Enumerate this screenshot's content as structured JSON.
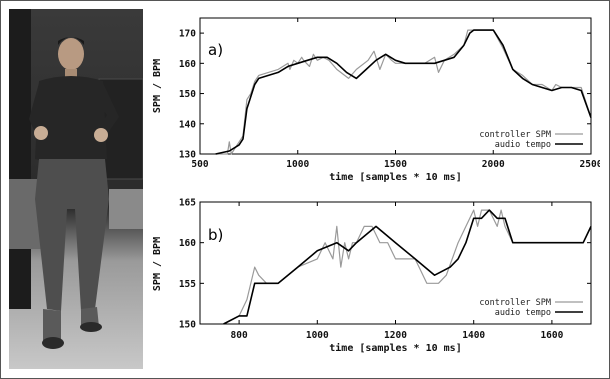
{
  "colors": {
    "controller": "#9a9a9a",
    "audio": "#000000"
  },
  "photo": {
    "description_icon": "person-jogging-photo"
  },
  "chart_data": [
    {
      "type": "line",
      "panel_label": "a)",
      "xlabel": "time [samples * 10 ms]",
      "ylabel": "SPM / BPM",
      "xlim": [
        500,
        2500
      ],
      "ylim": [
        130,
        175
      ],
      "xticks": [
        500,
        1000,
        1500,
        2000,
        2500
      ],
      "yticks": [
        130,
        140,
        150,
        160,
        170
      ],
      "legend_position": "bottom-right",
      "series": [
        {
          "name": "controller SPM",
          "color_key": "controller",
          "x": [
            580,
            620,
            640,
            650,
            660,
            670,
            700,
            720,
            740,
            760,
            780,
            800,
            850,
            900,
            950,
            960,
            980,
            1000,
            1020,
            1030,
            1060,
            1080,
            1100,
            1130,
            1160,
            1200,
            1260,
            1300,
            1360,
            1390,
            1420,
            1450,
            1480,
            1500,
            1550,
            1600,
            1650,
            1700,
            1720,
            1750,
            1800,
            1850,
            1870,
            1900,
            2000,
            2050,
            2100,
            2150,
            2200,
            2250,
            2300,
            2320,
            2350,
            2400,
            2450,
            2500
          ],
          "y": [
            130,
            130,
            130,
            134,
            130,
            131,
            134,
            136,
            148,
            150,
            154,
            156,
            157,
            158,
            160,
            158,
            161,
            160,
            162,
            161,
            159,
            163,
            161,
            162,
            161,
            158,
            155,
            158,
            161,
            164,
            158,
            163,
            161,
            160,
            160,
            160,
            160,
            162,
            157,
            161,
            163,
            166,
            171,
            171,
            171,
            165,
            158,
            156,
            153,
            153,
            151,
            153,
            152,
            152,
            152,
            142
          ]
        },
        {
          "name": "audio tempo",
          "color_key": "audio",
          "x": [
            580,
            650,
            700,
            720,
            740,
            760,
            780,
            800,
            850,
            900,
            950,
            1000,
            1050,
            1100,
            1150,
            1200,
            1250,
            1300,
            1350,
            1400,
            1450,
            1500,
            1550,
            1600,
            1650,
            1700,
            1750,
            1800,
            1850,
            1880,
            1900,
            1950,
            2000,
            2050,
            2100,
            2150,
            2200,
            2250,
            2300,
            2350,
            2400,
            2450,
            2500
          ],
          "y": [
            130,
            131,
            133,
            135,
            145,
            149,
            153,
            155,
            156,
            157,
            159,
            160,
            161,
            162,
            162,
            160,
            157,
            155,
            158,
            161,
            163,
            161,
            160,
            160,
            160,
            160,
            161,
            162,
            166,
            170,
            171,
            171,
            171,
            166,
            158,
            155,
            153,
            152,
            151,
            152,
            152,
            151,
            142
          ]
        }
      ]
    },
    {
      "type": "line",
      "panel_label": "b)",
      "xlabel": "time [samples * 10 ms]",
      "ylabel": "SPM / BPM",
      "xlim": [
        700,
        1700
      ],
      "ylim": [
        150,
        165
      ],
      "xticks": [
        800,
        1000,
        1200,
        1400,
        1600
      ],
      "yticks": [
        150,
        155,
        160,
        165
      ],
      "legend_position": "bottom-right",
      "series": [
        {
          "name": "controller SPM",
          "color_key": "controller",
          "x": [
            760,
            800,
            820,
            840,
            850,
            870,
            900,
            950,
            1000,
            1020,
            1040,
            1050,
            1060,
            1070,
            1080,
            1090,
            1100,
            1120,
            1140,
            1160,
            1180,
            1200,
            1220,
            1250,
            1280,
            1300,
            1310,
            1330,
            1360,
            1380,
            1400,
            1410,
            1420,
            1440,
            1460,
            1470,
            1480,
            1500,
            1520,
            1560,
            1600,
            1640,
            1680,
            1700
          ],
          "y": [
            150,
            151,
            153,
            157,
            156,
            155,
            155,
            157,
            158,
            160,
            158,
            162,
            157,
            160,
            158,
            160,
            160,
            162,
            162,
            160,
            160,
            158,
            158,
            158,
            155,
            155,
            155,
            156,
            160,
            162,
            164,
            162,
            164,
            164,
            162,
            164,
            162,
            160,
            160,
            160,
            160,
            160,
            160,
            162
          ]
        },
        {
          "name": "audio tempo",
          "color_key": "audio",
          "x": [
            760,
            800,
            820,
            840,
            860,
            900,
            950,
            1000,
            1050,
            1080,
            1100,
            1150,
            1200,
            1250,
            1300,
            1340,
            1360,
            1380,
            1400,
            1420,
            1440,
            1460,
            1480,
            1500,
            1550,
            1600,
            1680,
            1700
          ],
          "y": [
            150,
            151,
            151,
            155,
            155,
            155,
            157,
            159,
            160,
            159,
            160,
            162,
            160,
            158,
            156,
            157,
            158,
            160,
            163,
            163,
            164,
            163,
            163,
            160,
            160,
            160,
            160,
            162
          ]
        }
      ]
    }
  ]
}
